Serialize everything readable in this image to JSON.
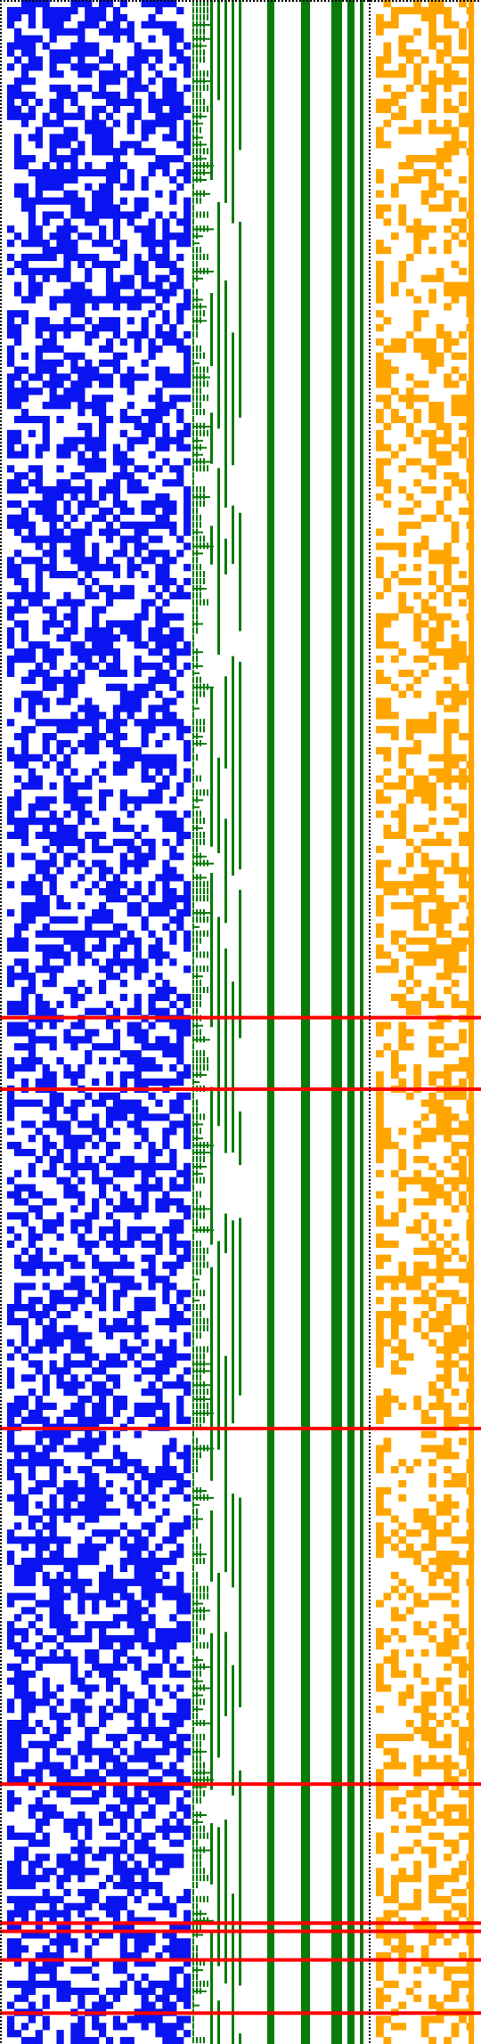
{
  "colors": {
    "background": "#ffffff",
    "bits": "#0a14f0",
    "tree": "#0a7a0a",
    "bars": "#0a7a0a",
    "orange": "#ffa500",
    "red_lines": "#ff0000",
    "dotted": "#000000"
  },
  "grid": {
    "rows": 290,
    "left_cols": 26,
    "right_cols": 13,
    "left_density": 0.52,
    "right_density": 0.38,
    "seed": 1337
  },
  "red_lines": [
    0.497,
    0.532,
    0.698,
    0.872,
    0.94,
    0.944,
    0.958,
    0.984
  ]
}
